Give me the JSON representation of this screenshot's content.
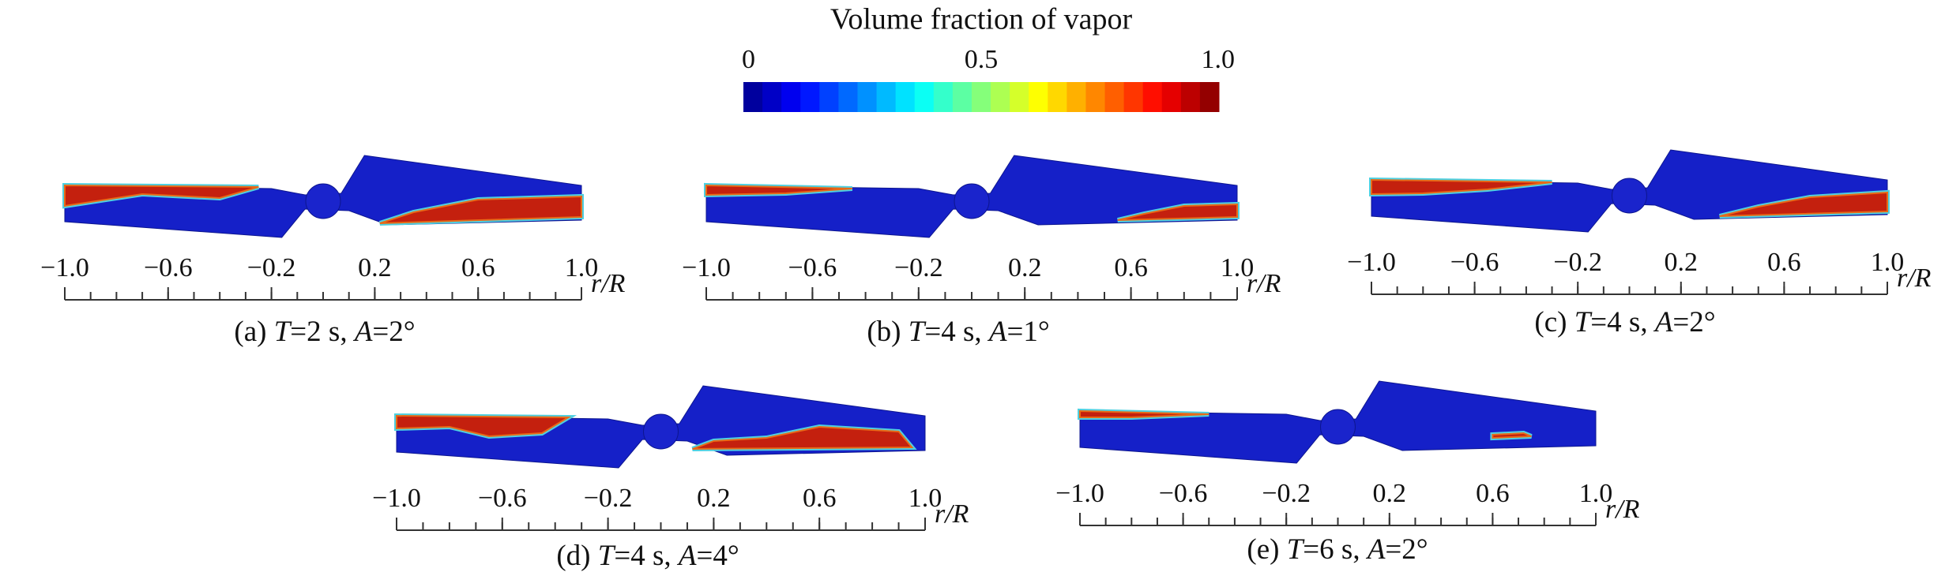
{
  "colorbar": {
    "title": "Volume fraction of vapor",
    "lim": [
      0,
      1
    ],
    "ticks": [
      0,
      0.5,
      {
        "value": 1,
        "label": "1.0"
      }
    ]
  },
  "axis": {
    "label": "r/R",
    "xlim": [
      -1,
      1
    ],
    "ticks": [
      {
        "value": -1,
        "label": "−1.0"
      },
      {
        "value": -0.6,
        "label": "−0.6"
      },
      {
        "value": -0.2,
        "label": "−0.2"
      },
      0.2,
      0.6,
      {
        "value": 1,
        "label": "1.0"
      }
    ]
  },
  "panels": [
    {
      "caption": [
        "(a) ",
        "T",
        "=2 s, ",
        "A",
        "=2°"
      ]
    },
    {
      "caption": [
        "(b) ",
        "T",
        "=4 s, ",
        "A",
        "=1°"
      ]
    },
    {
      "caption": [
        "(c) ",
        "T",
        "=4 s, ",
        "A",
        "=2°"
      ]
    },
    {
      "caption": [
        "(d) ",
        "T",
        "=4 s, ",
        "A",
        "=4°"
      ]
    },
    {
      "caption": [
        "(e) ",
        "T",
        "=6 s, ",
        "A",
        "=2°"
      ]
    }
  ]
}
